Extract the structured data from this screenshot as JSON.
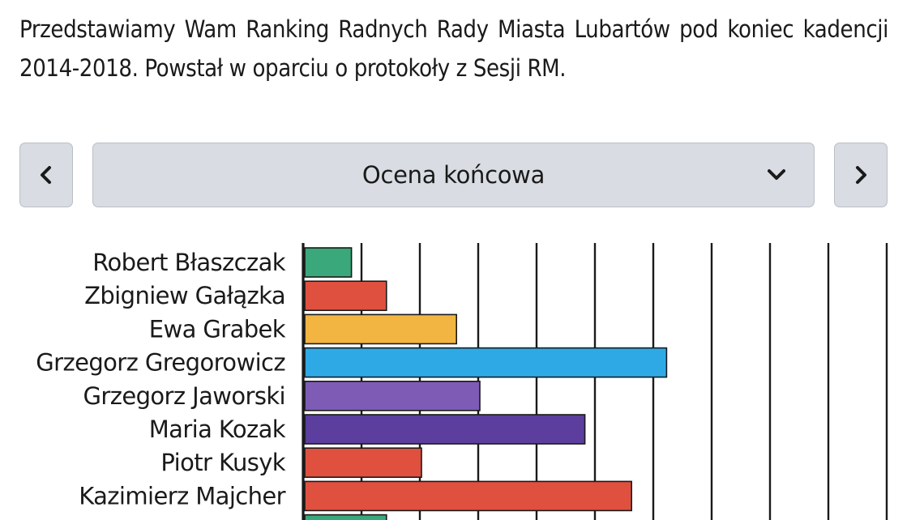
{
  "intro": {
    "text": "Przedstawiamy Wam Ranking Radnych Rady Miasta Lubartów pod koniec kadencji 2014-2018. Powstał w oparciu o protokoły z Sesji RM."
  },
  "selector": {
    "prev_icon": "chevron-left-icon",
    "next_icon": "chevron-right-icon",
    "dropdown_icon": "chevron-down-icon",
    "selected": "Ocena końcowa"
  },
  "chart_data": {
    "type": "bar",
    "orientation": "horizontal",
    "categories": [
      "Robert Błaszczak",
      "Zbigniew Gałązka",
      "Ewa Grabek",
      "Grzegorz Gregorowicz",
      "Grzegorz Jaworski",
      "Maria Kozak",
      "Piotr Kusyk",
      "Kazimierz Majcher",
      ""
    ],
    "values": [
      0.8,
      1.4,
      2.6,
      6.2,
      3.0,
      4.8,
      2.0,
      5.6,
      1.4
    ],
    "colors": [
      "#3aa87a",
      "#e0503f",
      "#f2b541",
      "#2ea9e6",
      "#7e5bb5",
      "#5b3e9e",
      "#e0503f",
      "#e0503f",
      "#3aa87a"
    ],
    "xlim": [
      0,
      10
    ],
    "grid": true,
    "title": "",
    "xlabel": "",
    "ylabel": ""
  }
}
